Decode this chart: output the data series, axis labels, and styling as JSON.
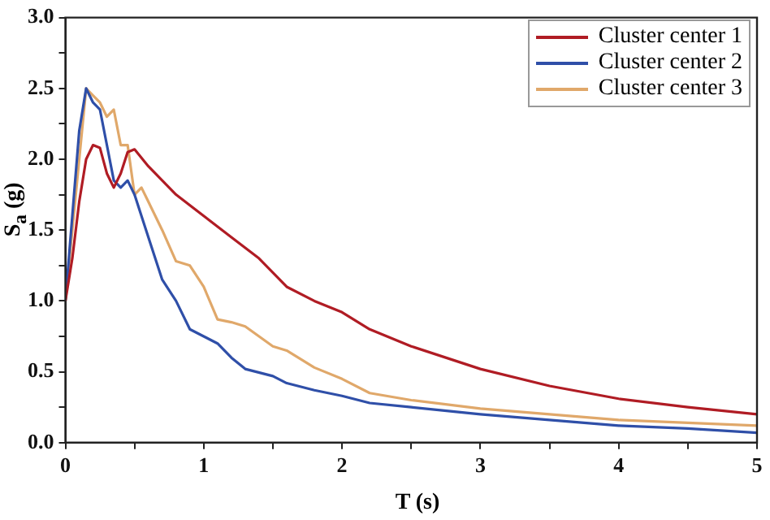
{
  "chart_data": {
    "type": "line",
    "xlabel": "T (s)",
    "ylabel": "S$_{a}$ (g)",
    "grid": false,
    "legend": "top right",
    "marker": "none",
    "line_style": "solid",
    "xlim": [
      0,
      5
    ],
    "ylim": [
      0,
      3
    ],
    "xticks": [
      0,
      {
        "value": 0.5,
        "label": null
      },
      1,
      {
        "value": 1.5,
        "label": null
      },
      2,
      {
        "value": 2.5,
        "label": null
      },
      3,
      {
        "value": 3.5,
        "label": null
      },
      4,
      {
        "value": 4.5,
        "label": null
      },
      5
    ],
    "yticks": [
      {
        "value": 0,
        "label": "0.0"
      },
      {
        "value": 0.25,
        "label": null
      },
      {
        "value": 0.5,
        "label": "0.5"
      },
      {
        "value": 0.75,
        "label": null
      },
      {
        "value": 1,
        "label": "1.0"
      },
      {
        "value": 1.25,
        "label": null
      },
      {
        "value": 1.5,
        "label": "1.5"
      },
      {
        "value": 1.75,
        "label": null
      },
      {
        "value": 2,
        "label": "2.0"
      },
      {
        "value": 2.25,
        "label": null
      },
      {
        "value": 2.5,
        "label": "2.5"
      },
      {
        "value": 2.75,
        "label": null
      },
      {
        "value": 3,
        "label": "3.0"
      }
    ],
    "series": [
      {
        "name": "Cluster center 1",
        "color": "#b01c24",
        "x": [
          0,
          0.05,
          0.1,
          0.15,
          0.2,
          0.25,
          0.3,
          0.35,
          0.4,
          0.45,
          0.5,
          0.6,
          0.7,
          0.8,
          1.0,
          1.2,
          1.4,
          1.6,
          1.8,
          2.0,
          2.2,
          2.5,
          3,
          3.5,
          4,
          4.5,
          5
        ],
        "values": [
          1.0,
          1.3,
          1.7,
          2.0,
          2.1,
          2.08,
          1.9,
          1.8,
          1.9,
          2.05,
          2.07,
          1.95,
          1.85,
          1.75,
          1.6,
          1.45,
          1.3,
          1.1,
          1.0,
          0.92,
          0.8,
          0.68,
          0.52,
          0.4,
          0.31,
          0.25,
          0.2
        ]
      },
      {
        "name": "Cluster center 2",
        "color": "#2f4fa8",
        "x": [
          0,
          0.05,
          0.1,
          0.15,
          0.2,
          0.25,
          0.3,
          0.35,
          0.4,
          0.45,
          0.5,
          0.6,
          0.7,
          0.8,
          0.9,
          1.0,
          1.1,
          1.2,
          1.3,
          1.5,
          1.6,
          1.8,
          2.0,
          2.2,
          2.5,
          3,
          3.5,
          4,
          4.5,
          5
        ],
        "values": [
          1.0,
          1.6,
          2.2,
          2.5,
          2.4,
          2.35,
          2.1,
          1.85,
          1.8,
          1.85,
          1.75,
          1.45,
          1.15,
          1.0,
          0.8,
          0.75,
          0.7,
          0.6,
          0.52,
          0.47,
          0.42,
          0.37,
          0.33,
          0.28,
          0.25,
          0.2,
          0.16,
          0.12,
          0.1,
          0.07
        ]
      },
      {
        "name": "Cluster center 3",
        "color": "#e0a86a",
        "x": [
          0,
          0.1,
          0.15,
          0.2,
          0.25,
          0.3,
          0.35,
          0.4,
          0.45,
          0.5,
          0.55,
          0.6,
          0.7,
          0.8,
          0.9,
          1.0,
          1.1,
          1.2,
          1.3,
          1.4,
          1.5,
          1.6,
          1.8,
          2.0,
          2.2,
          2.5,
          3,
          3.5,
          4,
          4.5,
          5
        ],
        "values": [
          1.0,
          2.0,
          2.5,
          2.45,
          2.4,
          2.3,
          2.35,
          2.1,
          2.1,
          1.75,
          1.8,
          1.7,
          1.5,
          1.28,
          1.25,
          1.1,
          0.87,
          0.85,
          0.82,
          0.75,
          0.68,
          0.65,
          0.53,
          0.45,
          0.35,
          0.3,
          0.24,
          0.2,
          0.16,
          0.14,
          0.12
        ]
      }
    ]
  }
}
